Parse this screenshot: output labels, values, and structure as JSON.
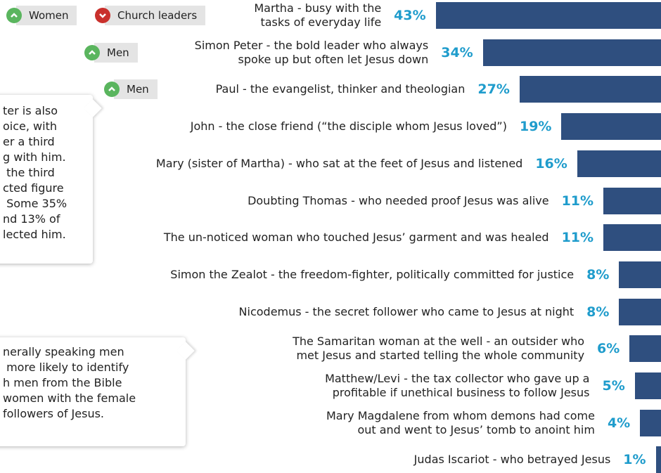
{
  "chart_data": {
    "type": "bar",
    "orientation": "horizontal",
    "color": "#2f4f7f",
    "categories": [
      "Martha - busy with the\ntasks of everyday life",
      "Simon Peter - the bold leader who always\nspoke up but often let Jesus down",
      "Paul - the evangelist, thinker and theologian",
      "John - the close friend (“the disciple whom Jesus loved”)",
      "Mary (sister of Martha) - who sat at the feet of Jesus and listened",
      "Doubting Thomas - who needed proof Jesus was alive",
      "The un-noticed woman who touched Jesus’ garment and was healed",
      "Simon the Zealot - the freedom-fighter, politically committed for justice",
      "Nicodemus - the secret follower who came to Jesus at night",
      "The Samaritan woman at the well - an outsider who\nmet Jesus and started telling the whole community",
      "Matthew/Levi - the tax collector who gave up a\nprofitable if unethical business to follow Jesus",
      "Mary Magdalene from whom demons had come\nout and went to Jesus’ tomb to anoint him",
      "Judas Iscariot - who betrayed Jesus"
    ],
    "values": [
      43,
      34,
      27,
      19,
      16,
      11,
      11,
      8,
      8,
      6,
      5,
      4,
      1
    ],
    "value_labels": [
      "43%",
      "34%",
      "27%",
      "19%",
      "16%",
      "11%",
      "11%",
      "8%",
      "8%",
      "6%",
      "5%",
      "4%",
      "1%"
    ],
    "tags": [
      {
        "row": 0,
        "label": "Women",
        "direction": "up"
      },
      {
        "row": 0,
        "label": "Church leaders",
        "direction": "down"
      },
      {
        "row": 1,
        "label": "Men",
        "direction": "up"
      },
      {
        "row": 2,
        "label": "Men",
        "direction": "up"
      }
    ],
    "callouts": [
      [
        "ter is also",
        "oice, with",
        "er a third",
        "g with him.",
        " the third",
        "cted figure",
        " Some 35%",
        "nd 13% of",
        "lected him."
      ],
      [
        "nerally speaking men",
        " more likely to identify",
        "h men from the Bible",
        "women with the female",
        "followers of Jesus."
      ]
    ]
  }
}
